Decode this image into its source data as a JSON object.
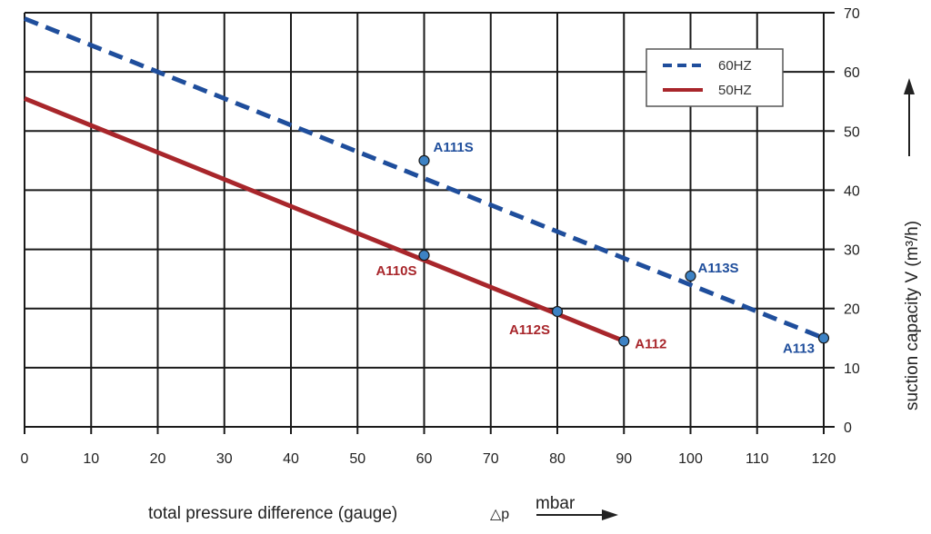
{
  "chart_data": {
    "type": "line",
    "xlabel": "total pressure difference (gauge)",
    "xlabel_symbol": "△p",
    "xlabel_unit": "mbar",
    "ylabel": "suction capacity V (m³/h)",
    "xlim": [
      0,
      120
    ],
    "ylim": [
      0,
      70
    ],
    "x_ticks": [
      0,
      10,
      20,
      30,
      40,
      50,
      60,
      70,
      80,
      90,
      100,
      110,
      120
    ],
    "y_ticks": [
      0,
      10,
      20,
      30,
      40,
      50,
      60,
      70
    ],
    "grid": true,
    "legend_position": "top-right",
    "series": [
      {
        "name": "60HZ",
        "style": "dashed",
        "color": "#1f4e9c",
        "x": [
          0,
          120
        ],
        "y": [
          69,
          15
        ],
        "points": [
          {
            "x": 60,
            "y": 45,
            "label": "A111S"
          },
          {
            "x": 100,
            "y": 25.5,
            "label": "A113S"
          },
          {
            "x": 120,
            "y": 15,
            "label": "A113"
          }
        ]
      },
      {
        "name": "50HZ",
        "style": "solid",
        "color": "#a8262b",
        "x": [
          0,
          90
        ],
        "y": [
          55.5,
          14.5
        ],
        "points": [
          {
            "x": 60,
            "y": 29,
            "label": "A110S"
          },
          {
            "x": 80,
            "y": 19.5,
            "label": "A112S"
          },
          {
            "x": 90,
            "y": 14.5,
            "label": "A112"
          }
        ]
      }
    ]
  }
}
